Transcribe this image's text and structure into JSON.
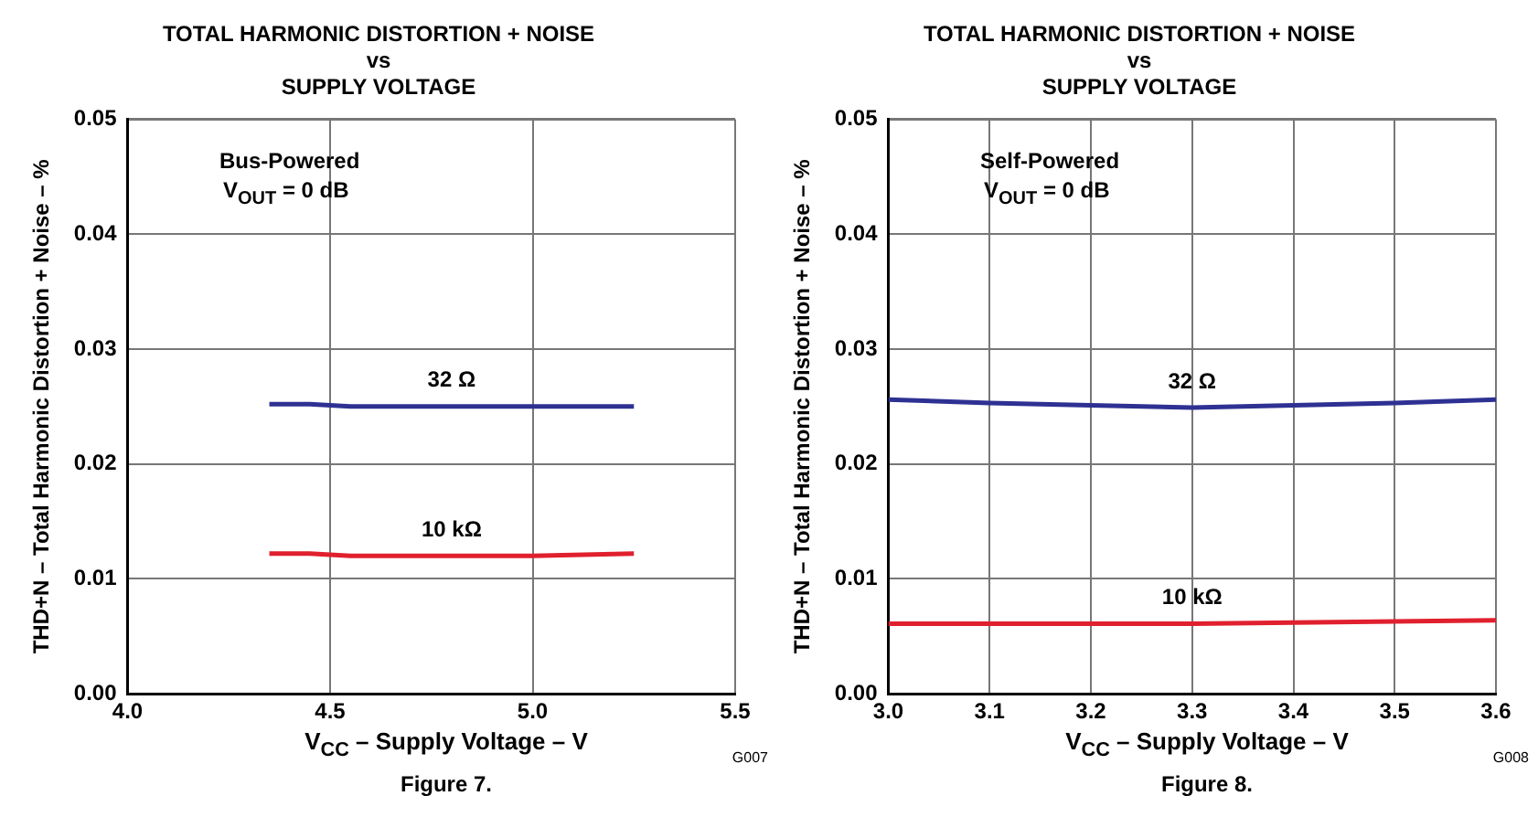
{
  "chart_data": [
    {
      "type": "line",
      "title": "TOTAL HARMONIC DISTORTION + NOISE\nvs\nSUPPLY VOLTAGE",
      "xlabel": "V$_{CC}$ – Supply Voltage – V",
      "ylabel": "THD+N – Total Harmonic Distortion + Noise – %",
      "annotations": [
        "Bus-Powered",
        "V$_{OUT}$ = 0 dB",
        "Figure 7.",
        "G007"
      ],
      "series": [
        {
          "name": "32 Ω",
          "color": "#2e3192",
          "x": [
            4.35,
            4.45,
            4.55,
            4.75,
            5.0,
            5.25
          ],
          "values": [
            0.0252,
            0.0252,
            0.025,
            0.025,
            0.025,
            0.025
          ]
        },
        {
          "name": "10 kΩ",
          "color": "#e0202e",
          "x": [
            4.35,
            4.45,
            4.55,
            4.75,
            5.0,
            5.25
          ],
          "values": [
            0.0122,
            0.0122,
            0.012,
            0.012,
            0.012,
            0.0122
          ]
        }
      ],
      "xlim": [
        4.0,
        5.5
      ],
      "xticks": [
        {
          "value": 4,
          "label": "4.0"
        },
        4.5,
        {
          "value": 5,
          "label": "5.0"
        },
        5.5
      ],
      "ylim": [
        0,
        0.05
      ],
      "yticks": [
        {
          "value": 0,
          "label": "0.00"
        },
        0.01,
        0.02,
        0.03,
        0.04,
        0.05
      ],
      "grid": true,
      "legend": false,
      "line_style": "solid",
      "marker": "none"
    },
    {
      "type": "line",
      "title": "TOTAL HARMONIC DISTORTION + NOISE\nvs\nSUPPLY VOLTAGE",
      "xlabel": "V$_{CC}$ – Supply Voltage – V",
      "ylabel": "THD+N – Total Harmonic Distortion + Noise – %",
      "annotations": [
        "Self-Powered",
        "V$_{OUT}$ = 0 dB",
        "Figure 8.",
        "G008"
      ],
      "series": [
        {
          "name": "32 Ω",
          "color": "#2e3192",
          "x": [
            3.0,
            3.1,
            3.2,
            3.3,
            3.4,
            3.5,
            3.6
          ],
          "values": [
            0.0256,
            0.0253,
            0.0251,
            0.0249,
            0.0251,
            0.0253,
            0.0256
          ]
        },
        {
          "name": "10 kΩ",
          "color": "#e0202e",
          "x": [
            3.0,
            3.2,
            3.3,
            3.4,
            3.6
          ],
          "values": [
            0.0061,
            0.0061,
            0.0061,
            0.0062,
            0.0064
          ]
        }
      ],
      "xlim": [
        3.0,
        3.6
      ],
      "xticks": [
        {
          "value": 3,
          "label": "3.0"
        },
        3.1,
        3.2,
        3.3,
        3.4,
        3.5,
        3.6
      ],
      "ylim": [
        0,
        0.05
      ],
      "yticks": [
        {
          "value": 0,
          "label": "0.00"
        },
        0.01,
        0.02,
        0.03,
        0.04,
        0.05
      ],
      "grid": true,
      "legend": false,
      "line_style": "solid",
      "marker": "none"
    }
  ]
}
